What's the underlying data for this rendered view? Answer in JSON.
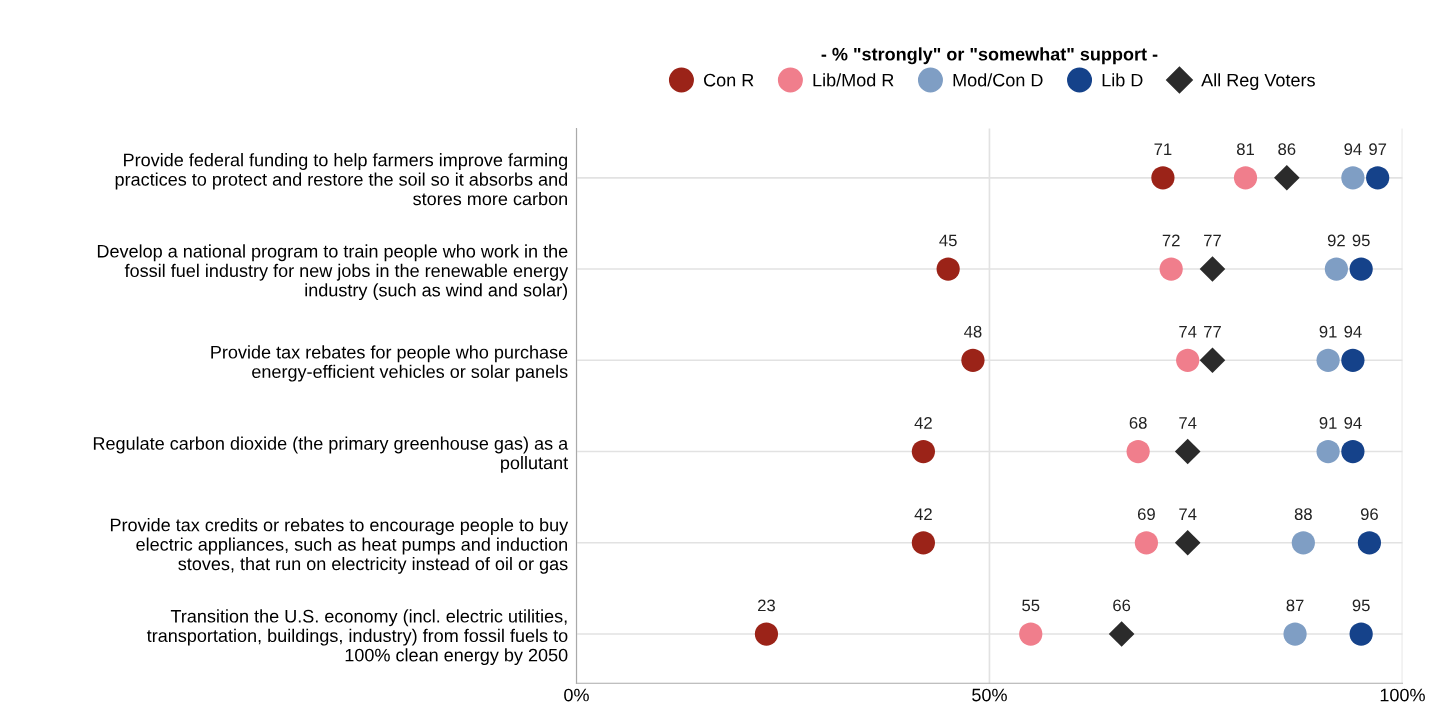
{
  "chart_data": {
    "type": "scatter",
    "orientation": "horizontal",
    "legend_title": "- % \"strongly\" or \"somewhat\" support -",
    "categories": [
      "Provide federal funding to help farmers improve farming\npractices to protect and restore the soil so it absorbs and\nstores more carbon",
      "Develop a national program to train people who work in the\nfossil fuel industry for new jobs in the renewable energy\nindustry (such as wind and solar)",
      "Provide tax rebates for people who purchase\nenergy-efficient vehicles or solar panels",
      "Regulate carbon dioxide (the primary greenhouse gas) as a\npollutant",
      "Provide tax credits or rebates to encourage people to buy\nelectric appliances, such as heat pumps and induction\nstoves, that run on electricity instead of oil or gas",
      "Transition the U.S. economy (incl. electric utilities,\ntransportation, buildings, industry) from fossil fuels to\n100% clean energy by 2050"
    ],
    "series": [
      {
        "name": "Con R",
        "color": "#9b2318",
        "marker": "circle",
        "values": [
          71,
          45,
          48,
          42,
          42,
          23
        ]
      },
      {
        "name": "Lib/Mod R",
        "color": "#f07e8c",
        "marker": "circle",
        "values": [
          81,
          72,
          74,
          68,
          69,
          55
        ]
      },
      {
        "name": "Mod/Con D",
        "color": "#7f9ec4",
        "marker": "circle",
        "values": [
          94,
          92,
          91,
          91,
          88,
          87
        ]
      },
      {
        "name": "Lib D",
        "color": "#15428a",
        "marker": "circle",
        "values": [
          97,
          95,
          94,
          94,
          96,
          95
        ]
      },
      {
        "name": "All Reg Voters",
        "color": "#2b2b2b",
        "marker": "diamond",
        "values": [
          86,
          77,
          77,
          74,
          74,
          66
        ]
      }
    ],
    "xlim": [
      0,
      100
    ],
    "xticks": [
      {
        "value": 0,
        "label": "0%"
      },
      {
        "value": 50,
        "label": "50%"
      },
      {
        "value": 100,
        "label": "100%"
      }
    ],
    "grid": true,
    "legend": "top",
    "data_labels": true
  }
}
